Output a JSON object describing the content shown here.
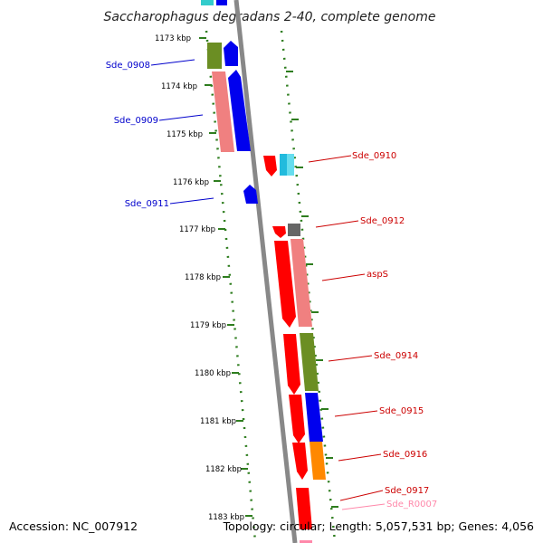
{
  "map_title": "Saccharophagus degradans 2-40, complete genome",
  "footer": {
    "accession": "Accession: NC_007912",
    "summary": "Topology: circular; Length: 5,057,531 bp; Genes: 4,056"
  },
  "colors": {
    "reverse_strand_label": "#0000cc",
    "forward_strand_label": "#cc0000",
    "rrna_label": "#ff88aa",
    "ruler_dots": "#2e7d1e",
    "backbone": "#888888"
  },
  "kbp_ticks": [
    "1173 kbp",
    "1174 kbp",
    "1175 kbp",
    "1176 kbp",
    "1177 kbp",
    "1178 kbp",
    "1179 kbp",
    "1180 kbp",
    "1181 kbp",
    "1182 kbp",
    "1183 kbp"
  ],
  "gene_labels": [
    {
      "text": "Sde_0908",
      "strand": "reverse"
    },
    {
      "text": "Sde_0909",
      "strand": "reverse"
    },
    {
      "text": "Sde_0911",
      "strand": "reverse"
    },
    {
      "text": "Sde_0910",
      "strand": "forward"
    },
    {
      "text": "Sde_0912",
      "strand": "forward"
    },
    {
      "text": "aspS",
      "strand": "forward"
    },
    {
      "text": "Sde_0914",
      "strand": "forward"
    },
    {
      "text": "Sde_0915",
      "strand": "forward"
    },
    {
      "text": "Sde_0916",
      "strand": "forward"
    },
    {
      "text": "Sde_0917",
      "strand": "forward"
    },
    {
      "text": "Sde_R0007",
      "strand": "rrna"
    }
  ]
}
